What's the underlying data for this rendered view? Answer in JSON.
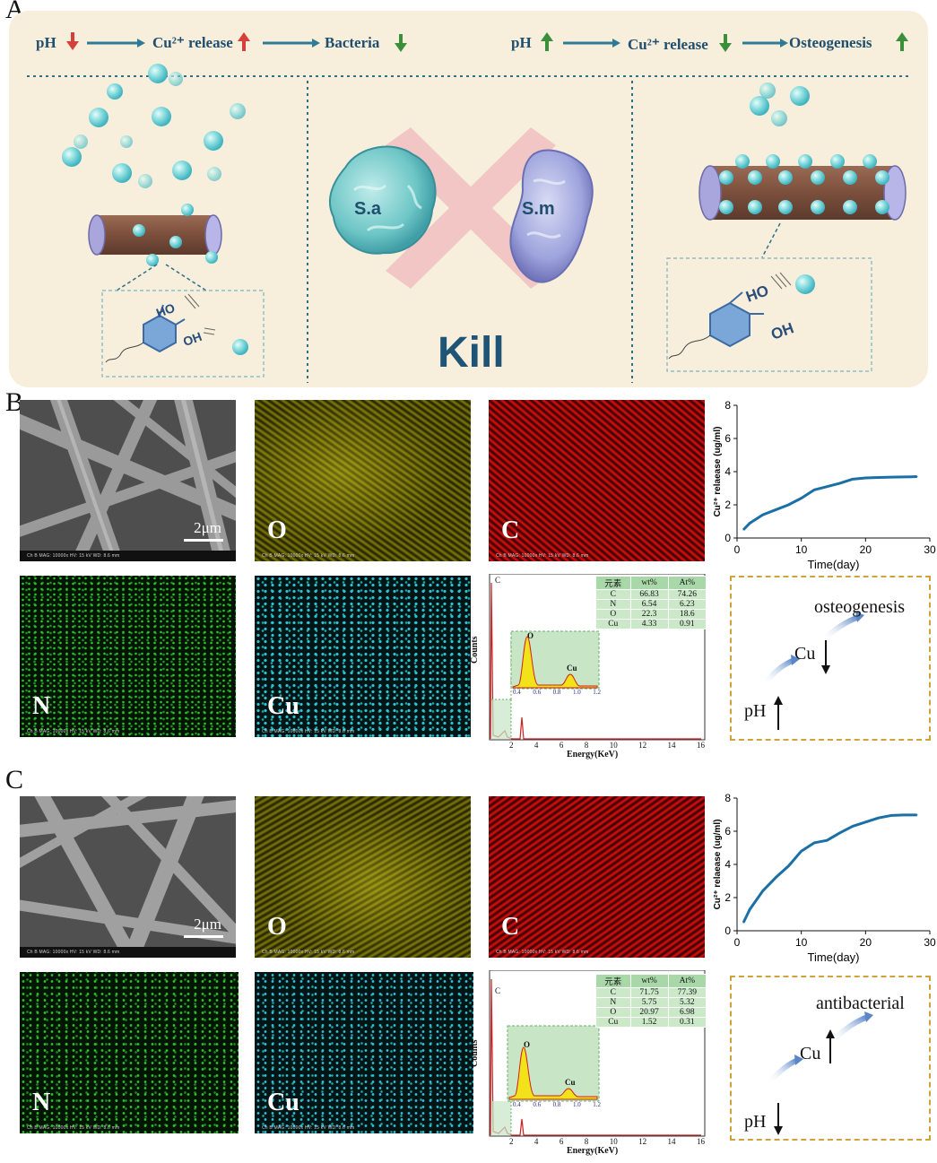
{
  "panels": {
    "A": "A",
    "B": "B",
    "C": "C"
  },
  "panelA": {
    "left_flow": {
      "pH": "pH",
      "release": "Cu²⁺ release",
      "bacteria": "Bacteria"
    },
    "right_flow": {
      "pH": "pH",
      "release": "Cu²⁺ release",
      "osteogenesis": "Osteogenesis"
    },
    "bacteria": {
      "sa": "S.a",
      "sm": "S.m"
    },
    "kill": "Kill",
    "hydroxyl": {
      "ho": "HO",
      "oh": "OH"
    },
    "colors": {
      "down_red": "#d6403a",
      "up_green": "#3b8e3a",
      "arrow": "#2f7a95"
    }
  },
  "panelB": {
    "sem": {
      "scale": "2μm",
      "footer": "Ch B  MAG: 10000x  HV: 15 kV  WD: 8.6 mm"
    },
    "maps": {
      "O": "O",
      "C": "C",
      "N": "N",
      "Cu": "Cu"
    },
    "eds": {
      "counts": "Counts",
      "xlabel": "Energy(KeV)",
      "peak_c": "C",
      "peak_o": "O",
      "peak_cu": "Cu",
      "inset_ticks": [
        "0.4",
        "0.6",
        "0.8",
        "1.0",
        "1.2"
      ],
      "xticks": [
        "2",
        "4",
        "6",
        "8",
        "10",
        "12",
        "14",
        "16"
      ],
      "table_head": [
        "元素",
        "wt%",
        "At%"
      ],
      "rows": [
        [
          "C",
          "66.83",
          "74.26"
        ],
        [
          "N",
          "6.54",
          "6.23"
        ],
        [
          "O",
          "22.3",
          "18.6"
        ],
        [
          "Cu",
          "4.33",
          "0.91"
        ]
      ]
    },
    "mechanism": {
      "label": "osteogenesis",
      "cu": "Cu",
      "ph": "pH"
    }
  },
  "panelC": {
    "sem": {
      "scale": "2μm",
      "footer": "Ch B  MAG: 10000x  HV: 15 kV  WD: 8.6 mm"
    },
    "maps": {
      "O": "O",
      "C": "C",
      "N": "N",
      "Cu": "Cu"
    },
    "eds": {
      "counts": "Counts",
      "xlabel": "Energy(KeV)",
      "peak_c": "C",
      "peak_o": "O",
      "peak_cu": "Cu",
      "inset_ticks": [
        "0.4",
        "0.6",
        "0.8",
        "1.0",
        "1.2"
      ],
      "xticks": [
        "2",
        "4",
        "6",
        "8",
        "10",
        "12",
        "14",
        "16"
      ],
      "table_head": [
        "元素",
        "wt%",
        "At%"
      ],
      "rows": [
        [
          "C",
          "71.75",
          "77.39"
        ],
        [
          "N",
          "5.75",
          "5.32"
        ],
        [
          "O",
          "20.97",
          "6.98"
        ],
        [
          "Cu",
          "1.52",
          "0.31"
        ]
      ]
    },
    "mechanism": {
      "label": "antibacterial",
      "cu": "Cu",
      "ph": "pH"
    }
  },
  "chart_data": [
    {
      "type": "line",
      "panel": "B",
      "x": [
        1,
        2,
        4,
        6,
        8,
        10,
        12,
        14,
        16,
        18,
        20,
        22,
        24,
        26,
        28
      ],
      "series": [
        {
          "values": [
            0.5,
            0.9,
            1.4,
            1.7,
            2.0,
            2.4,
            2.9,
            3.1,
            3.3,
            3.55,
            3.62,
            3.65,
            3.67,
            3.68,
            3.7
          ]
        }
      ],
      "xlabel": "Time(day)",
      "ylabel": "Cu²⁺ relaease (ug/ml)",
      "xlim": [
        0,
        30
      ],
      "ylim": [
        0,
        8
      ],
      "xticks": [
        0,
        10,
        20,
        30
      ],
      "yticks": [
        0,
        2,
        4,
        6,
        8
      ],
      "color": "#1a6fa6"
    },
    {
      "type": "line",
      "panel": "C",
      "x": [
        1,
        2,
        4,
        6,
        8,
        10,
        12,
        14,
        16,
        18,
        20,
        22,
        24,
        26,
        28
      ],
      "series": [
        {
          "values": [
            0.5,
            1.3,
            2.4,
            3.2,
            3.9,
            4.8,
            5.3,
            5.45,
            5.9,
            6.3,
            6.55,
            6.8,
            6.95,
            6.98,
            6.98
          ]
        }
      ],
      "xlabel": "Time(day)",
      "ylabel": "Cu²⁺ relaease (ug/ml)",
      "xlim": [
        0,
        30
      ],
      "ylim": [
        0,
        8
      ],
      "xticks": [
        0,
        10,
        20,
        30
      ],
      "yticks": [
        0,
        2,
        4,
        6,
        8
      ],
      "color": "#1a6fa6"
    }
  ]
}
